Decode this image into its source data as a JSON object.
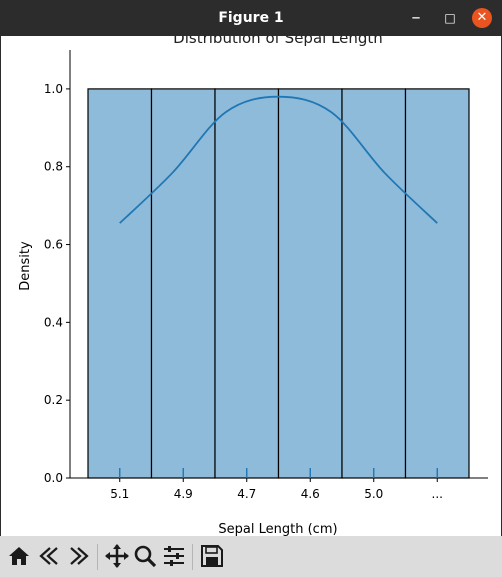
{
  "window": {
    "title": "Figure 1"
  },
  "toolbar": {
    "icons": [
      "home-icon",
      "back-icon",
      "forward-icon",
      "pan-icon",
      "zoom-icon",
      "configure-subplots-icon",
      "save-icon"
    ]
  },
  "colors": {
    "bar_fill": "#8fbbda",
    "bar_edge": "#000000",
    "kde_line": "#1f77b4",
    "titlebar": "#2c2c2c",
    "close_button": "#e95420"
  },
  "chart_data": {
    "type": "bar",
    "title": "Distribution of Sepal Length",
    "xlabel": "Sepal Length (cm)",
    "ylabel": "Density",
    "categories": [
      "5.1",
      "4.9",
      "4.7",
      "4.6",
      "5.0",
      "..."
    ],
    "values": [
      1.0,
      1.0,
      1.0,
      1.0,
      1.0,
      1.0
    ],
    "ylim": [
      0,
      1.1
    ],
    "yticks": [
      "0.0",
      "0.2",
      "0.4",
      "0.6",
      "0.8",
      "1.0"
    ],
    "kde_values": [
      0.655,
      0.785,
      0.94,
      0.98,
      0.94,
      0.785,
      0.655
    ],
    "grid": false
  }
}
